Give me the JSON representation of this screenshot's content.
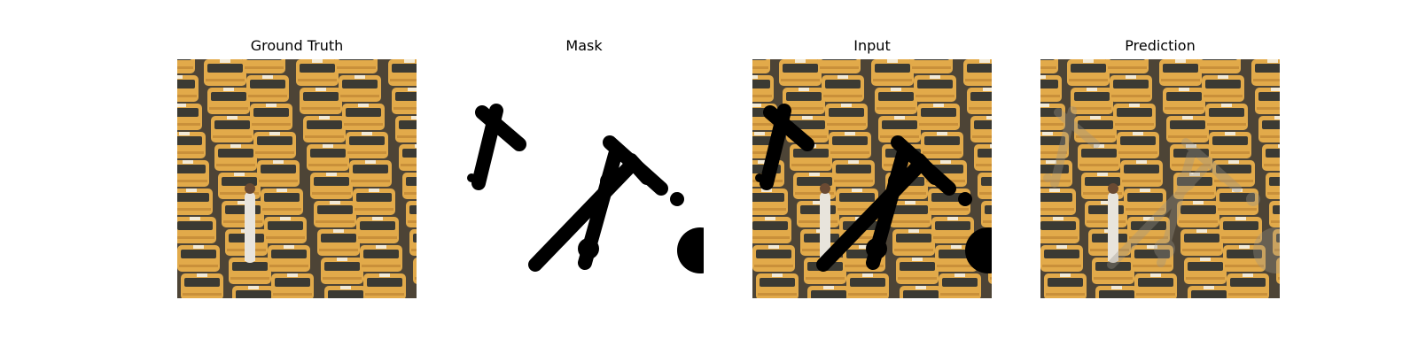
{
  "panels": [
    {
      "title": "Ground Truth"
    },
    {
      "title": "Mask"
    },
    {
      "title": "Input"
    },
    {
      "title": "Prediction"
    }
  ],
  "colors": {
    "taxi_yellow": "#e2aa4a",
    "windshield": "#3b3a33",
    "road": "#4d4436",
    "mask_stroke": "#000000",
    "background": "#ffffff"
  }
}
